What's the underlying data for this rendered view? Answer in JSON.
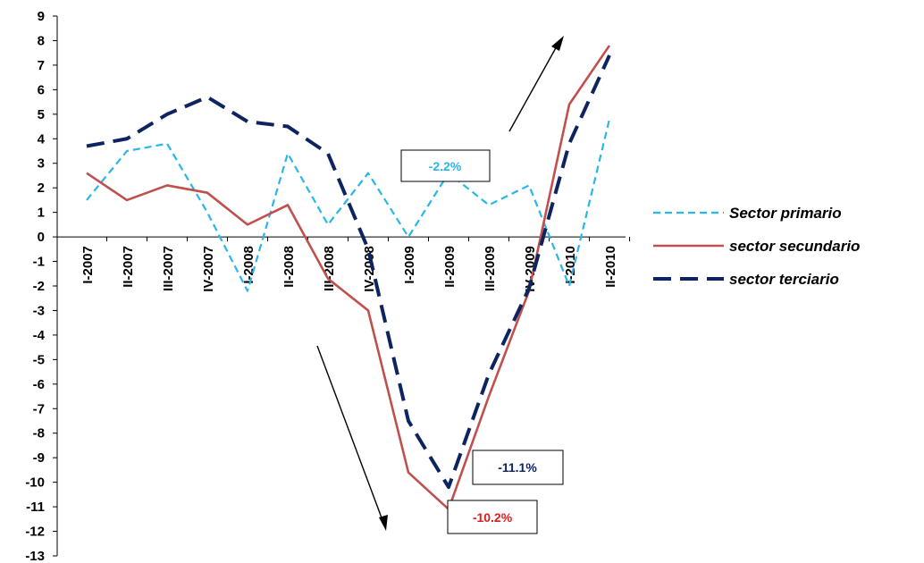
{
  "chart_data": {
    "type": "line",
    "categories": [
      "I-2007",
      "II-2007",
      "III-2007",
      "IV-2007",
      "I-2008",
      "II-2008",
      "III-2008",
      "IV-2008",
      "I-2009",
      "II-2009",
      "III-2009",
      "IV-2009",
      "I-2010",
      "II-2010"
    ],
    "ylim": [
      -13,
      9
    ],
    "yticks": [
      9,
      8,
      7,
      6,
      5,
      4,
      3,
      2,
      1,
      0,
      -1,
      -2,
      -3,
      -4,
      -5,
      -6,
      -7,
      -8,
      -9,
      -10,
      -11,
      -12,
      -13
    ],
    "grid": false,
    "legend_position": "right",
    "series": [
      {
        "name": "Sector primario",
        "color": "#29B6E8",
        "dash": "short",
        "values": [
          1.5,
          3.5,
          3.8,
          1.0,
          -2.2,
          3.4,
          0.5,
          2.6,
          0.0,
          2.6,
          1.3,
          2.1,
          -2.0,
          4.8
        ]
      },
      {
        "name": "sector secundario",
        "color": "#C0504D",
        "dash": "solid",
        "values": [
          2.6,
          1.5,
          2.1,
          1.8,
          0.5,
          1.3,
          -1.7,
          -3.0,
          -9.6,
          -11.1,
          -6.5,
          -2.2,
          5.4,
          7.8
        ]
      },
      {
        "name": "sector terciario",
        "color": "#0D2461",
        "dash": "long",
        "values": [
          3.7,
          4.0,
          5.0,
          5.7,
          4.7,
          4.5,
          3.4,
          -0.5,
          -7.5,
          -10.2,
          -5.6,
          -2.1,
          3.8,
          7.4
        ]
      }
    ],
    "annotations": [
      {
        "text": "-2.2%",
        "color": "#29B6E8"
      },
      {
        "text": "-11.1%",
        "color": "#0D2461"
      },
      {
        "text": "-10.2%",
        "color": "#E31A1C"
      }
    ]
  }
}
